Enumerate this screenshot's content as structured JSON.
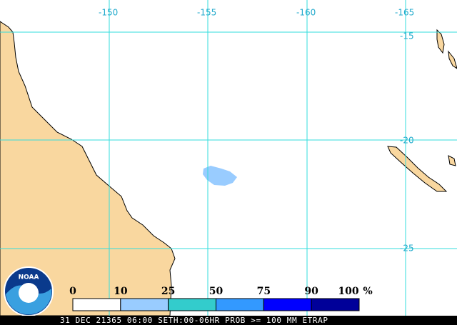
{
  "map": {
    "longitude_labels": [
      "-150",
      "-155",
      "-160",
      "-165"
    ],
    "latitude_labels": [
      "-15",
      "-20",
      "-25"
    ],
    "logo": "NOAA",
    "legend": {
      "labels": [
        "0",
        "10",
        "25",
        "50",
        "75",
        "90",
        "100"
      ],
      "unit": "%",
      "colors": [
        "#ffffff",
        "#99ccff",
        "#33cccc",
        "#3399ff",
        "#0000ff",
        "#000099"
      ]
    },
    "footer": "31 DEC 21365 06:00 SETH:00-06HR PROB >= 100 MM ETRAP"
  }
}
